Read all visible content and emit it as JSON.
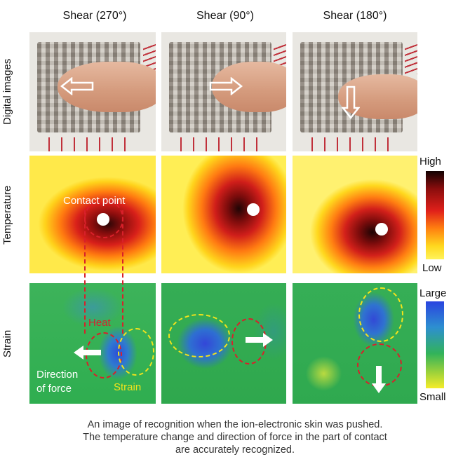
{
  "columns": [
    "Shear (270°)",
    "Shear (90°)",
    "Shear (180°)"
  ],
  "rows": [
    "Digital images",
    "Temperature",
    "Strain"
  ],
  "colorbars": {
    "temperature": {
      "high": "High",
      "low": "Low"
    },
    "strain": {
      "high": "Large",
      "low": "Small"
    }
  },
  "annotations": {
    "contact_point": "Contact point",
    "heat": "Heat",
    "direction_line1": "Direction",
    "direction_line2": "of force",
    "strain": "Strain"
  },
  "caption": [
    "An image of recognition when the ion-electronic skin was pushed.",
    "The temperature change and direction of force in the part of contact",
    "are accurately recognized."
  ],
  "arrows": {
    "photo": [
      "left",
      "right",
      "down"
    ],
    "strain": [
      "left",
      "right",
      "down"
    ]
  },
  "colors": {
    "heat_ring": "#d8202a",
    "strain_ring": "#f2e31c",
    "arrow": "#ffffff"
  }
}
